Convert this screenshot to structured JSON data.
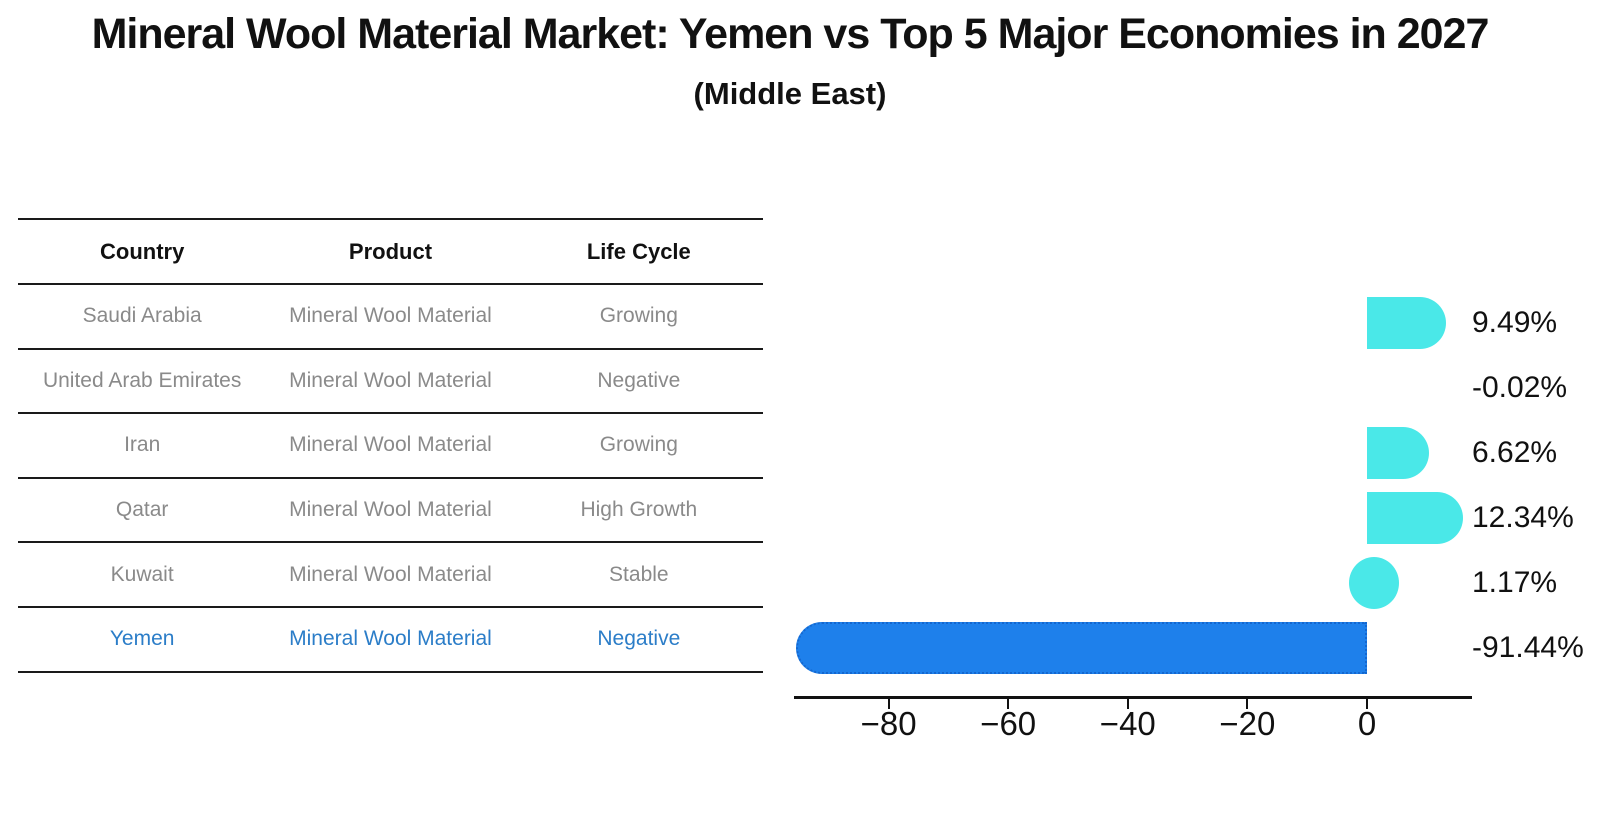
{
  "title": "Mineral Wool Material Market: Yemen vs Top 5 Major Economies in 2027",
  "subtitle": "(Middle East)",
  "table": {
    "headers": [
      "Country",
      "Product",
      "Life Cycle"
    ],
    "rows": [
      {
        "country": "Saudi Arabia",
        "product": "Mineral Wool Material",
        "life_cycle": "Growing",
        "highlighted": false
      },
      {
        "country": "United Arab Emirates",
        "product": "Mineral Wool Material",
        "life_cycle": "Negative",
        "highlighted": false
      },
      {
        "country": "Iran",
        "product": "Mineral Wool Material",
        "life_cycle": "Growing",
        "highlighted": false
      },
      {
        "country": "Qatar",
        "product": "Mineral Wool Material",
        "life_cycle": "High Growth",
        "highlighted": false
      },
      {
        "country": "Kuwait",
        "product": "Mineral Wool Material",
        "life_cycle": "Stable",
        "highlighted": false
      },
      {
        "country": "Yemen",
        "product": "Mineral Wool Material",
        "life_cycle": "Negative",
        "highlighted": true
      }
    ]
  },
  "chart_data": {
    "type": "bar",
    "orientation": "horizontal",
    "categories": [
      "Saudi Arabia",
      "United Arab Emirates",
      "Iran",
      "Qatar",
      "Kuwait",
      "Yemen"
    ],
    "values": [
      9.49,
      -0.02,
      6.62,
      12.34,
      1.17,
      -91.44
    ],
    "value_labels": [
      "9.49%",
      "-0.02%",
      "6.62%",
      "12.34%",
      "1.17%",
      "-91.44%"
    ],
    "highlight_index": 5,
    "x_ticks": [
      -80,
      -60,
      -40,
      -20,
      0
    ],
    "x_tick_labels": [
      "−80",
      "−60",
      "−40",
      "−20",
      "0"
    ],
    "xlim": [
      -96,
      17.5
    ],
    "grid": false,
    "legend": false,
    "title": "Mineral Wool Material Market: Yemen vs Top 5 Major Economies in 2027",
    "xlabel": "",
    "ylabel": ""
  },
  "colors": {
    "bar_default": "#4ae8e8",
    "bar_highlight": "#1e80eb",
    "highlight_border": "#1467cf",
    "table_text": "#8a8a8a",
    "table_highlight_text": "#2b7dc8",
    "line": "#1a1a1a",
    "text": "#111111"
  }
}
